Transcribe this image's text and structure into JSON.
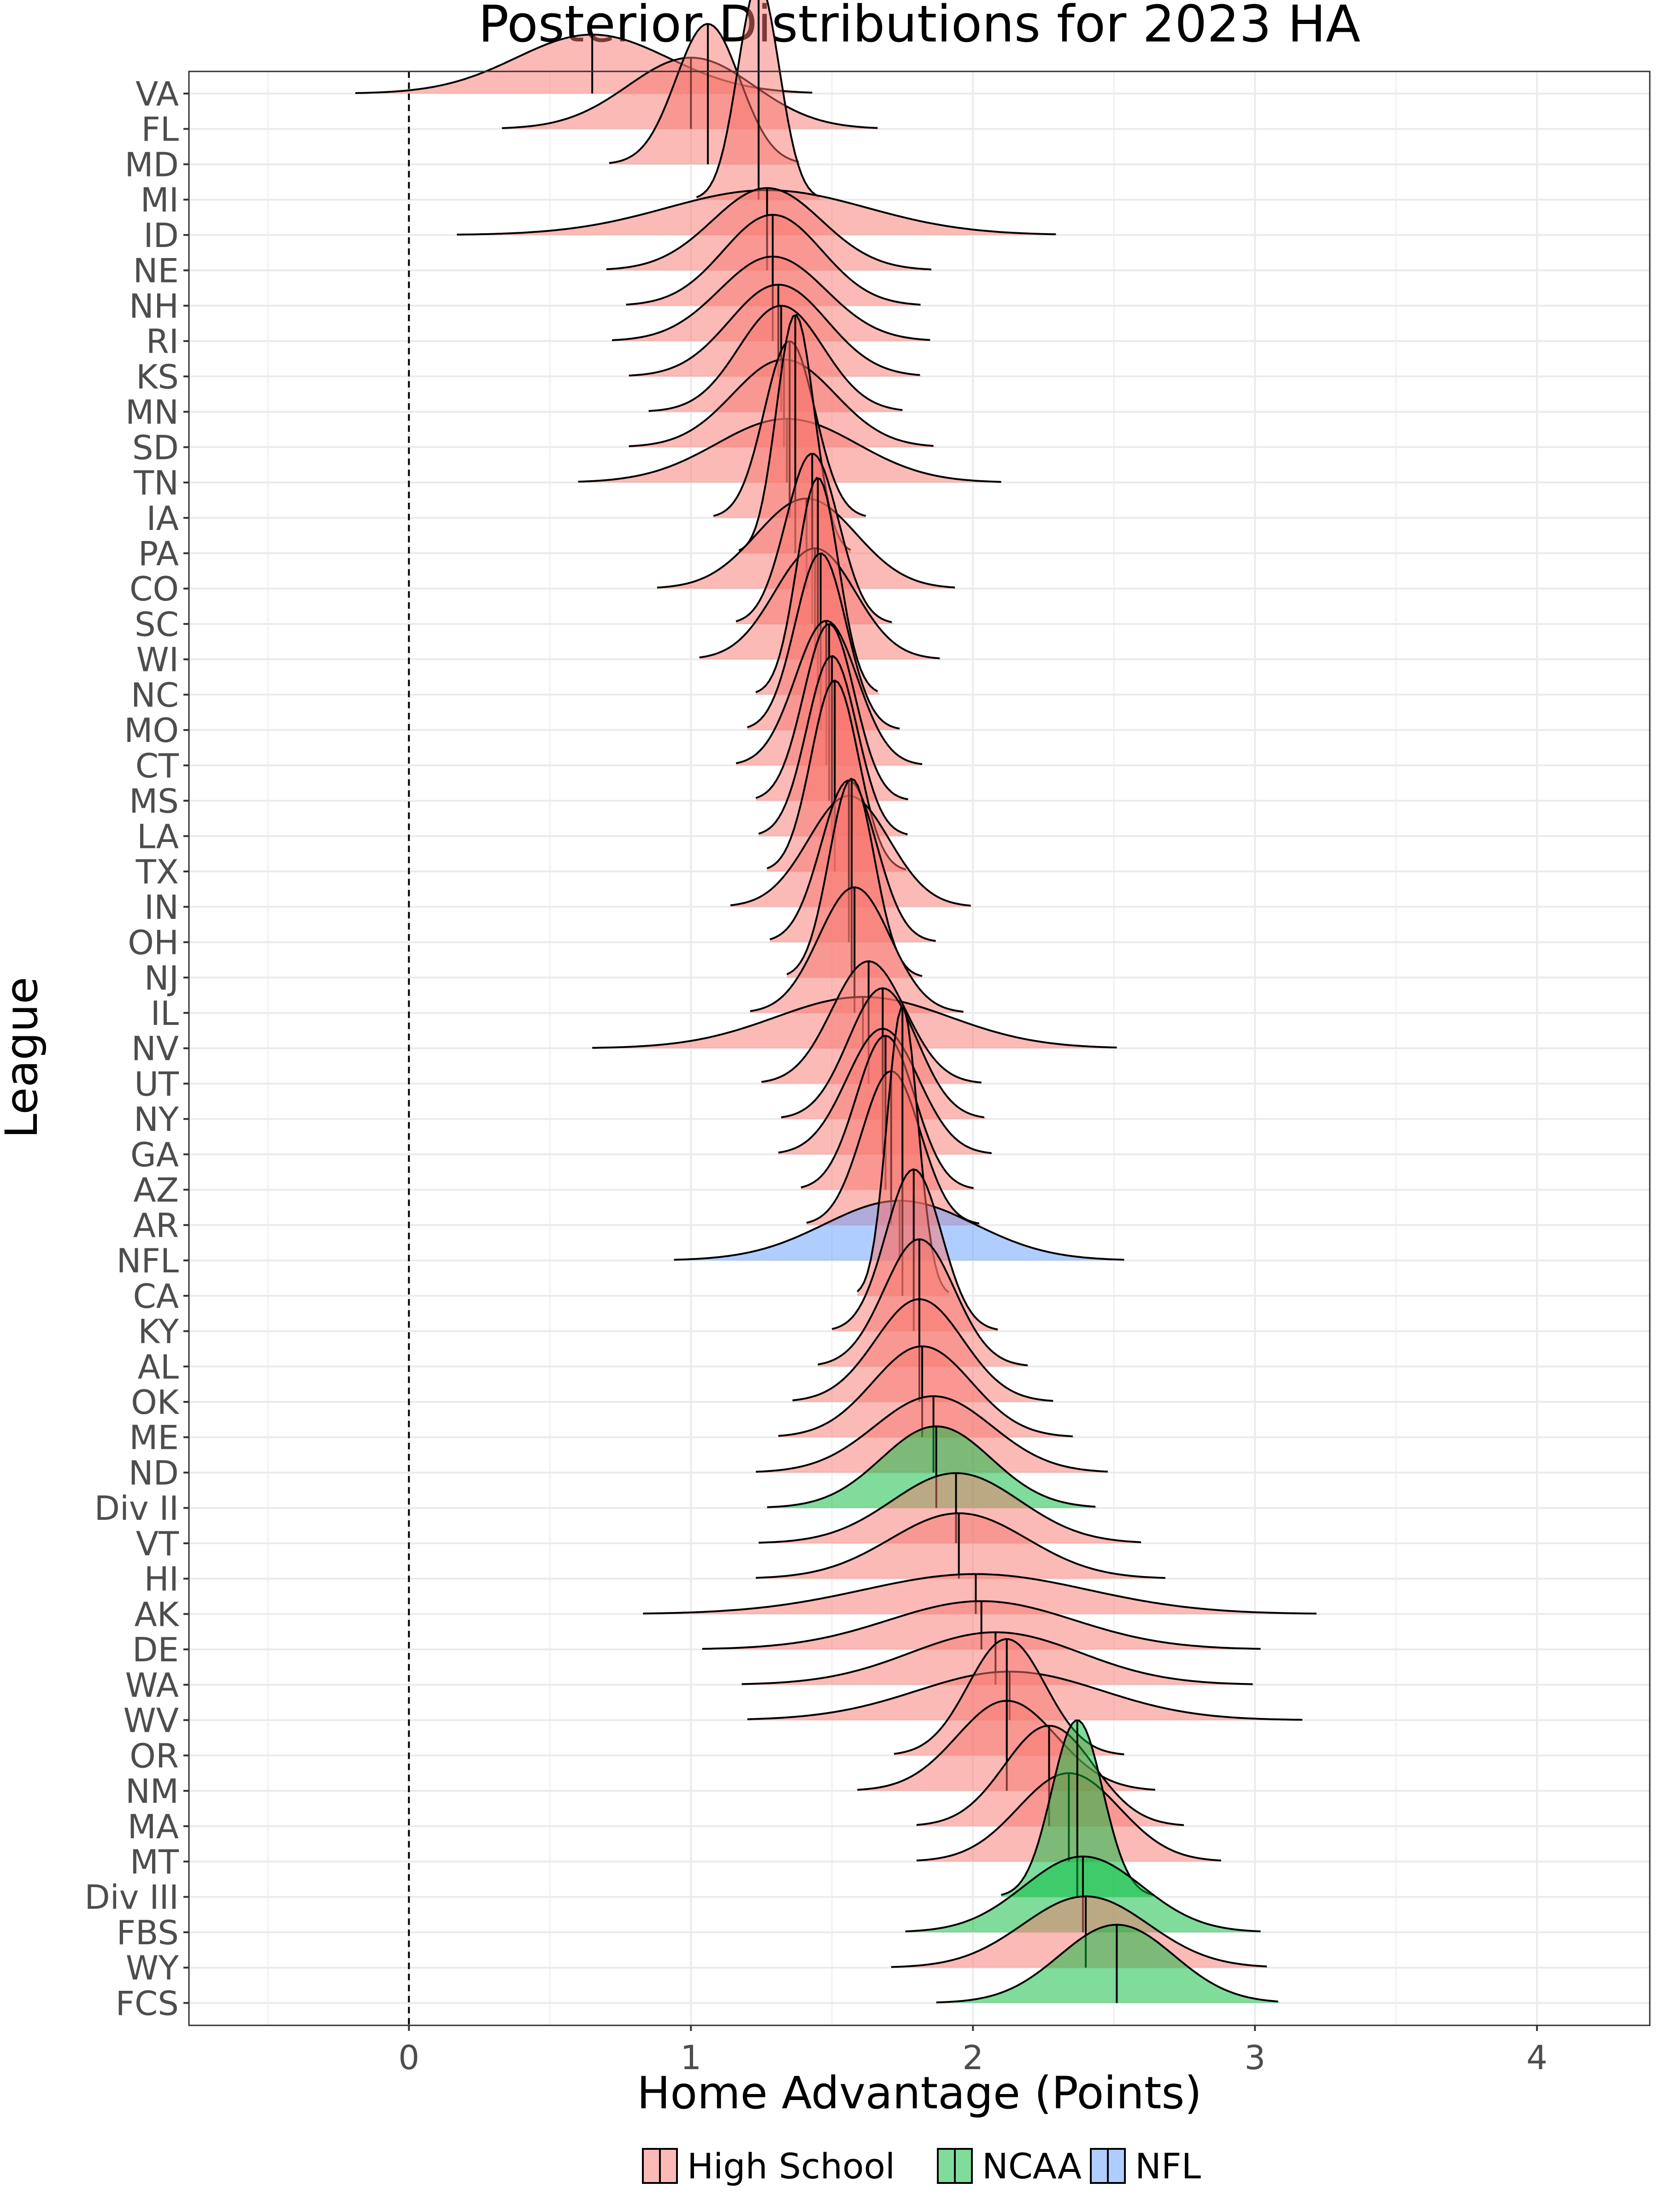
{
  "chart_data": {
    "type": "ridgeline",
    "title": "Posterior Distributions for 2023 HA",
    "xlabel": "Home Advantage (Points)",
    "ylabel": "League",
    "xlim": [
      -0.78,
      4.4
    ],
    "x_ticks": [
      0,
      1,
      2,
      3,
      4
    ],
    "reference_line_x": 0,
    "grid": true,
    "legend_position": "bottom",
    "groups": [
      {
        "name": "High School",
        "color": "#F8766D"
      },
      {
        "name": "NCAA",
        "color": "#00BA38"
      },
      {
        "name": "NFL",
        "color": "#619CFF"
      }
    ],
    "series": [
      {
        "league": "VA",
        "group": "High School",
        "mean": 0.65,
        "min": -0.19,
        "max": 1.43
      },
      {
        "league": "FL",
        "group": "High School",
        "mean": 1.0,
        "min": 0.33,
        "max": 1.67
      },
      {
        "league": "MD",
        "group": "High School",
        "mean": 1.06,
        "min": 0.71,
        "max": 1.39
      },
      {
        "league": "MI",
        "group": "High School",
        "mean": 1.24,
        "min": 1.02,
        "max": 1.46
      },
      {
        "league": "ID",
        "group": "High School",
        "mean": 1.27,
        "min": 0.17,
        "max": 2.3
      },
      {
        "league": "NE",
        "group": "High School",
        "mean": 1.27,
        "min": 0.7,
        "max": 1.86
      },
      {
        "league": "NH",
        "group": "High School",
        "mean": 1.29,
        "min": 0.77,
        "max": 1.82
      },
      {
        "league": "RI",
        "group": "High School",
        "mean": 1.29,
        "min": 0.72,
        "max": 1.85
      },
      {
        "league": "KS",
        "group": "High School",
        "mean": 1.31,
        "min": 0.78,
        "max": 1.82
      },
      {
        "league": "MN",
        "group": "High School",
        "mean": 1.32,
        "min": 0.85,
        "max": 1.75
      },
      {
        "league": "SD",
        "group": "High School",
        "mean": 1.33,
        "min": 0.78,
        "max": 1.87
      },
      {
        "league": "TN",
        "group": "High School",
        "mean": 1.34,
        "min": 0.6,
        "max": 2.1
      },
      {
        "league": "IA",
        "group": "High School",
        "mean": 1.35,
        "min": 1.08,
        "max": 1.62
      },
      {
        "league": "PA",
        "group": "High School",
        "mean": 1.37,
        "min": 1.17,
        "max": 1.57
      },
      {
        "league": "CO",
        "group": "High School",
        "mean": 1.41,
        "min": 0.88,
        "max": 1.94
      },
      {
        "league": "SC",
        "group": "High School",
        "mean": 1.43,
        "min": 1.16,
        "max": 1.72
      },
      {
        "league": "WI",
        "group": "High School",
        "mean": 1.44,
        "min": 1.03,
        "max": 1.89
      },
      {
        "league": "NC",
        "group": "High School",
        "mean": 1.45,
        "min": 1.23,
        "max": 1.67
      },
      {
        "league": "MO",
        "group": "High School",
        "mean": 1.46,
        "min": 1.2,
        "max": 1.74
      },
      {
        "league": "CT",
        "group": "High School",
        "mean": 1.48,
        "min": 1.16,
        "max": 1.82
      },
      {
        "league": "MS",
        "group": "High School",
        "mean": 1.49,
        "min": 1.23,
        "max": 1.77
      },
      {
        "league": "LA",
        "group": "High School",
        "mean": 1.5,
        "min": 1.24,
        "max": 1.77
      },
      {
        "league": "TX",
        "group": "High School",
        "mean": 1.51,
        "min": 1.27,
        "max": 1.77
      },
      {
        "league": "IN",
        "group": "High School",
        "mean": 1.56,
        "min": 1.14,
        "max": 2.0
      },
      {
        "league": "OH",
        "group": "High School",
        "mean": 1.56,
        "min": 1.28,
        "max": 1.87
      },
      {
        "league": "NJ",
        "group": "High School",
        "mean": 1.57,
        "min": 1.34,
        "max": 1.82
      },
      {
        "league": "IL",
        "group": "High School",
        "mean": 1.58,
        "min": 1.21,
        "max": 1.97
      },
      {
        "league": "NV",
        "group": "High School",
        "mean": 1.61,
        "min": 0.65,
        "max": 2.51
      },
      {
        "league": "UT",
        "group": "High School",
        "mean": 1.63,
        "min": 1.25,
        "max": 2.03
      },
      {
        "league": "NY",
        "group": "High School",
        "mean": 1.68,
        "min": 1.32,
        "max": 2.05
      },
      {
        "league": "GA",
        "group": "High School",
        "mean": 1.68,
        "min": 1.31,
        "max": 2.07
      },
      {
        "league": "AZ",
        "group": "High School",
        "mean": 1.69,
        "min": 1.39,
        "max": 2.01
      },
      {
        "league": "AR",
        "group": "High School",
        "mean": 1.71,
        "min": 1.41,
        "max": 2.03
      },
      {
        "league": "NFL",
        "group": "NFL",
        "mean": 1.74,
        "min": 0.94,
        "max": 2.54
      },
      {
        "league": "CA",
        "group": "High School",
        "mean": 1.75,
        "min": 1.59,
        "max": 1.92
      },
      {
        "league": "KY",
        "group": "High School",
        "mean": 1.79,
        "min": 1.5,
        "max": 2.09
      },
      {
        "league": "AL",
        "group": "High School",
        "mean": 1.81,
        "min": 1.45,
        "max": 2.2
      },
      {
        "league": "OK",
        "group": "High School",
        "mean": 1.81,
        "min": 1.36,
        "max": 2.29
      },
      {
        "league": "ME",
        "group": "High School",
        "mean": 1.82,
        "min": 1.31,
        "max": 2.36
      },
      {
        "league": "ND",
        "group": "High School",
        "mean": 1.86,
        "min": 1.23,
        "max": 2.48
      },
      {
        "league": "Div II",
        "group": "NCAA",
        "mean": 1.87,
        "min": 1.27,
        "max": 2.44
      },
      {
        "league": "VT",
        "group": "High School",
        "mean": 1.94,
        "min": 1.24,
        "max": 2.6
      },
      {
        "league": "HI",
        "group": "High School",
        "mean": 1.95,
        "min": 1.23,
        "max": 2.69
      },
      {
        "league": "AK",
        "group": "High School",
        "mean": 2.01,
        "min": 0.83,
        "max": 3.22
      },
      {
        "league": "DE",
        "group": "High School",
        "mean": 2.03,
        "min": 1.04,
        "max": 3.02
      },
      {
        "league": "WA",
        "group": "High School",
        "mean": 2.08,
        "min": 1.18,
        "max": 3.0
      },
      {
        "league": "WV",
        "group": "High School",
        "mean": 2.13,
        "min": 1.2,
        "max": 3.17
      },
      {
        "league": "OR",
        "group": "High School",
        "mean": 2.12,
        "min": 1.72,
        "max": 2.54
      },
      {
        "league": "NM",
        "group": "High School",
        "mean": 2.12,
        "min": 1.59,
        "max": 2.65
      },
      {
        "league": "MA",
        "group": "High School",
        "mean": 2.27,
        "min": 1.8,
        "max": 2.75
      },
      {
        "league": "MT",
        "group": "High School",
        "mean": 2.34,
        "min": 1.8,
        "max": 2.88
      },
      {
        "league": "Div III",
        "group": "NCAA",
        "mean": 2.37,
        "min": 2.1,
        "max": 2.64
      },
      {
        "league": "FBS",
        "group": "NCAA",
        "mean": 2.39,
        "min": 1.76,
        "max": 3.02
      },
      {
        "league": "WY",
        "group": "High School",
        "mean": 2.4,
        "min": 1.71,
        "max": 3.05
      },
      {
        "league": "FCS",
        "group": "NCAA",
        "mean": 2.51,
        "min": 1.87,
        "max": 3.09
      }
    ]
  }
}
